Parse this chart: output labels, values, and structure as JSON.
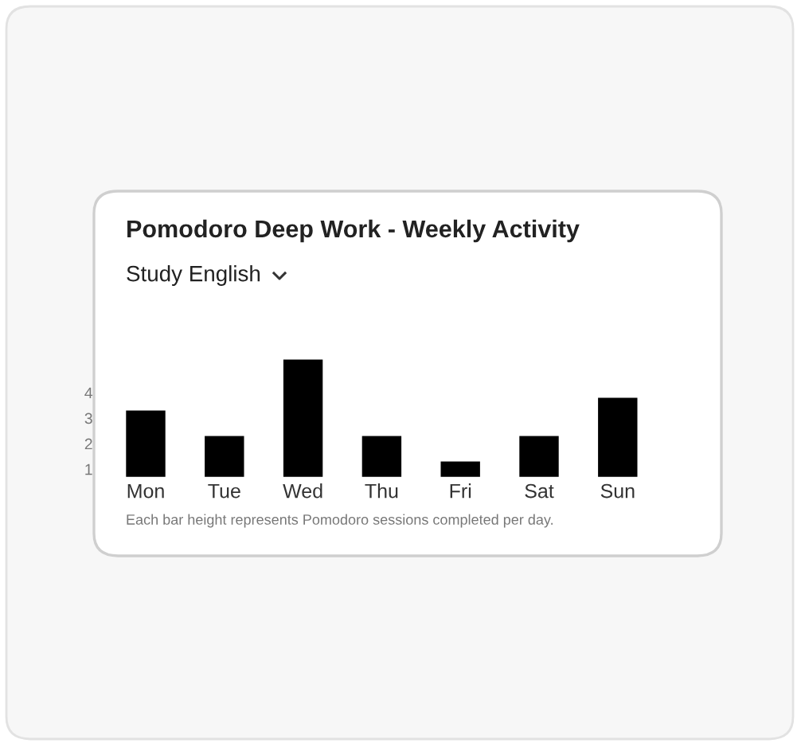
{
  "chart_data": {
    "type": "bar",
    "title": "Pomodoro Deep Work - Weekly Activity",
    "subtitle": "Study English",
    "categories": [
      "Mon",
      "Tue",
      "Wed",
      "Thu",
      "Fri",
      "Sat",
      "Sun"
    ],
    "values": [
      2.6,
      1.6,
      4.6,
      1.6,
      0.6,
      1.6,
      3.1
    ],
    "base": [
      0.7,
      0.7,
      0.7,
      0.7,
      0.7,
      0.7,
      0.7
    ],
    "color": "#000000",
    "ylim": [
      -2.4,
      11.9
    ],
    "yticks": [
      1,
      2,
      3,
      4
    ],
    "grid": false,
    "annotations": [
      "Each bar height represents Pomodoro sessions completed per day."
    ]
  }
}
